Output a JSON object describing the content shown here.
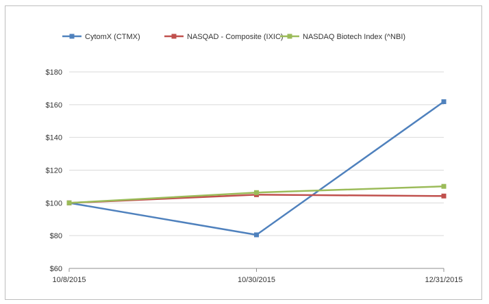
{
  "chart_data": {
    "type": "line",
    "title": "",
    "xlabel": "",
    "ylabel": "",
    "categories": [
      "10/8/2015",
      "10/30/2015",
      "12/31/2015"
    ],
    "ylim": [
      60,
      180
    ],
    "yticks": [
      60,
      80,
      100,
      120,
      140,
      160,
      180
    ],
    "ytick_labels": [
      "$60",
      "$80",
      "$100",
      "$120",
      "$140",
      "$160",
      "$180"
    ],
    "grid": "horizontal",
    "legend_position": "top",
    "series": [
      {
        "name": "CytomX (CTMX)",
        "color": "#4f81bd",
        "values": [
          100,
          80.5,
          161.8
        ]
      },
      {
        "name": "NASQAD - Composite (IXIC)",
        "color": "#c0504d",
        "values": [
          100,
          105,
          104.2
        ]
      },
      {
        "name": "NASDAQ Biotech Index (^NBI)",
        "color": "#9bbb59",
        "values": [
          100,
          106.3,
          110.1
        ]
      }
    ]
  }
}
